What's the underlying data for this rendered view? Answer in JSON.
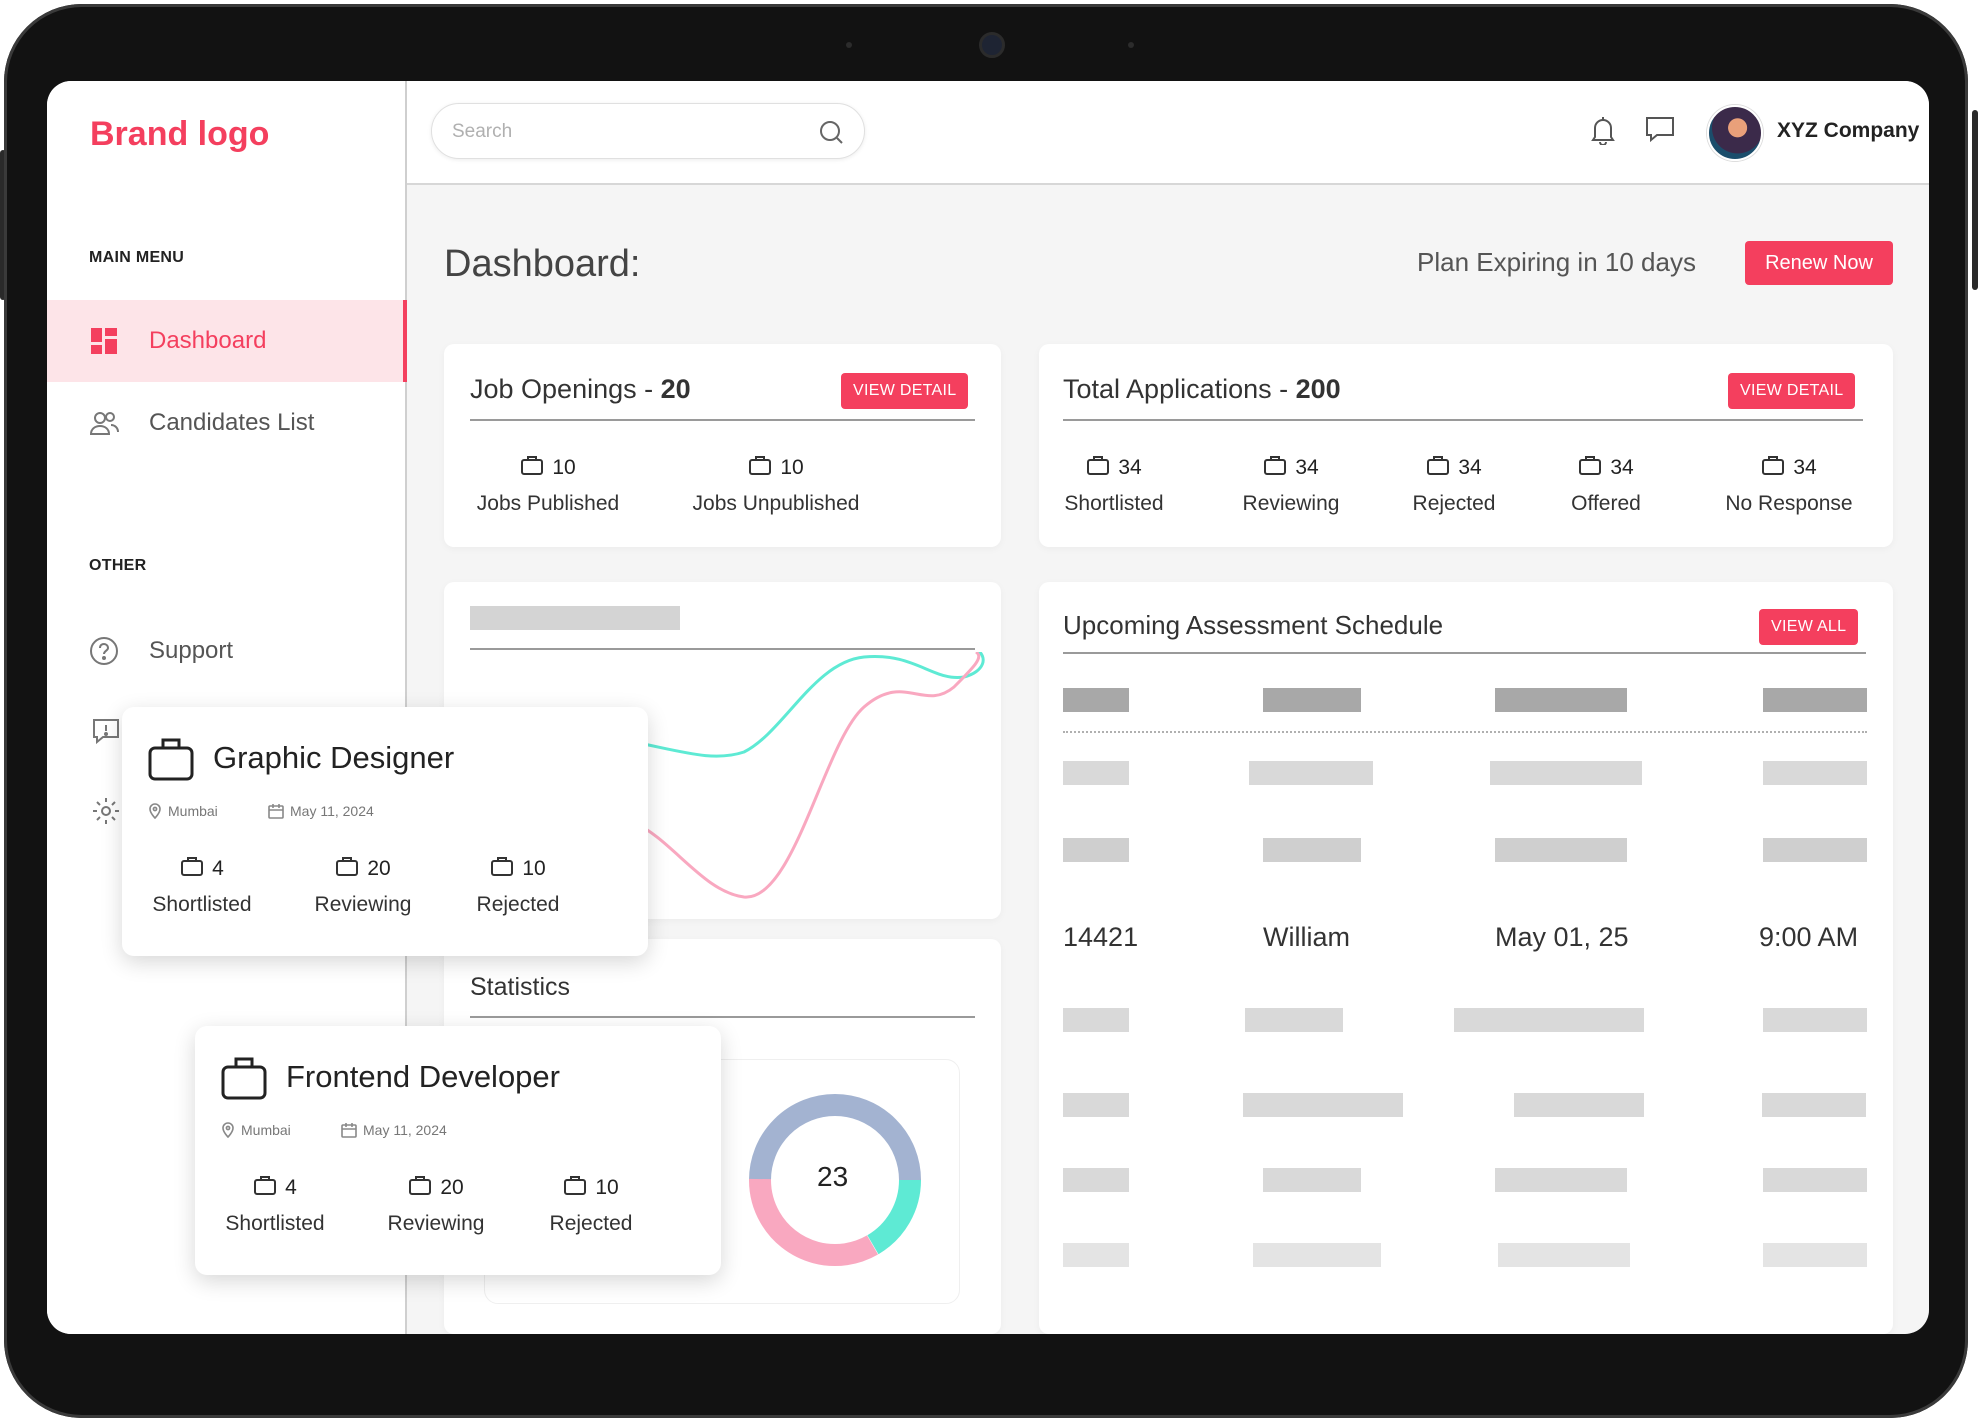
{
  "brand": "Brand logo",
  "sidebar": {
    "main_menu_heading": "MAIN MENU",
    "other_heading": "OTHER",
    "items": [
      {
        "label": "Dashboard",
        "icon": "dashboard-icon",
        "active": true
      },
      {
        "label": "Candidates List",
        "icon": "users-icon",
        "active": false
      },
      {
        "label": "Support",
        "icon": "help-icon",
        "active": false
      }
    ]
  },
  "header": {
    "search_placeholder": "Search",
    "company": "XYZ Company"
  },
  "page": {
    "title": "Dashboard:",
    "plan_notice": "Plan Expiring in 10 days",
    "renew_label": "Renew Now"
  },
  "job_openings": {
    "title": "Job Openings - ",
    "count": "20",
    "button": "VIEW DETAIL",
    "stats": [
      {
        "value": "10",
        "label": "Jobs Published"
      },
      {
        "value": "10",
        "label": "Jobs Unpublished"
      }
    ]
  },
  "applications": {
    "title": "Total Applications - ",
    "count": "200",
    "button": "VIEW DETAIL",
    "stats": [
      {
        "value": "34",
        "label": "Shortlisted"
      },
      {
        "value": "34",
        "label": "Reviewing"
      },
      {
        "value": "34",
        "label": "Rejected"
      },
      {
        "value": "34",
        "label": "Offered"
      },
      {
        "value": "34",
        "label": "No Response"
      }
    ]
  },
  "schedule": {
    "title": "Upcoming Assessment Schedule",
    "button": "VIEW ALL",
    "highlight_row": {
      "id": "14421",
      "name": "William",
      "date": "May 01, 25",
      "time": "9:00 AM"
    }
  },
  "statistics": {
    "title": "Statistics",
    "donut_value": "23"
  },
  "jobs": [
    {
      "title": "Graphic Designer",
      "location": "Mumbai",
      "date": "May 11, 2024",
      "stats": [
        {
          "value": "4",
          "label": "Shortlisted"
        },
        {
          "value": "20",
          "label": "Reviewing"
        },
        {
          "value": "10",
          "label": "Rejected"
        }
      ]
    },
    {
      "title": "Frontend Developer",
      "location": "Mumbai",
      "date": "May 11, 2024",
      "stats": [
        {
          "value": "4",
          "label": "Shortlisted"
        },
        {
          "value": "20",
          "label": "Reviewing"
        },
        {
          "value": "10",
          "label": "Rejected"
        }
      ]
    }
  ],
  "colors": {
    "accent": "#f43f5e",
    "teal": "#5eead4",
    "pink": "#f9a8c0",
    "slate": "#a3b3d1"
  }
}
